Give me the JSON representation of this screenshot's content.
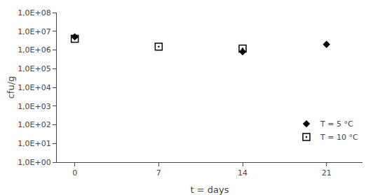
{
  "chart_data": {
    "type": "scatter",
    "x": [
      0,
      7,
      14,
      21
    ],
    "series": [
      {
        "name": "T = 5 °C",
        "color": "black",
        "marker": "diamond",
        "values": [
          5000000,
          null,
          800000,
          2000000
        ]
      },
      {
        "name": "T = 10 °C",
        "color": "black",
        "marker": "square-open-dot",
        "values": [
          4000000,
          1500000,
          1200000,
          null
        ]
      }
    ],
    "xlabel": "t = days",
    "ylabel": "cfu/g",
    "xlim": [
      -1.5,
      24
    ],
    "xticks": [
      0,
      7,
      14,
      21
    ],
    "ylim": [
      1,
      100000000
    ],
    "yticks": [
      {
        "value": 1,
        "label": "1,0E+00"
      },
      {
        "value": 10,
        "label": "1,0E+01"
      },
      {
        "value": 100,
        "label": "1,0E+02"
      },
      {
        "value": 1000,
        "label": "1,0E+03"
      },
      {
        "value": 10000,
        "label": "1,0E+04"
      },
      {
        "value": 100000,
        "label": "1,0E+05"
      },
      {
        "value": 1000000,
        "label": "1,0E+06"
      },
      {
        "value": 10000000,
        "label": "1,0E+07"
      },
      {
        "value": 100000000,
        "label": "1,0E+08"
      }
    ],
    "log": "y",
    "grid": false,
    "legend": "lower right"
  }
}
